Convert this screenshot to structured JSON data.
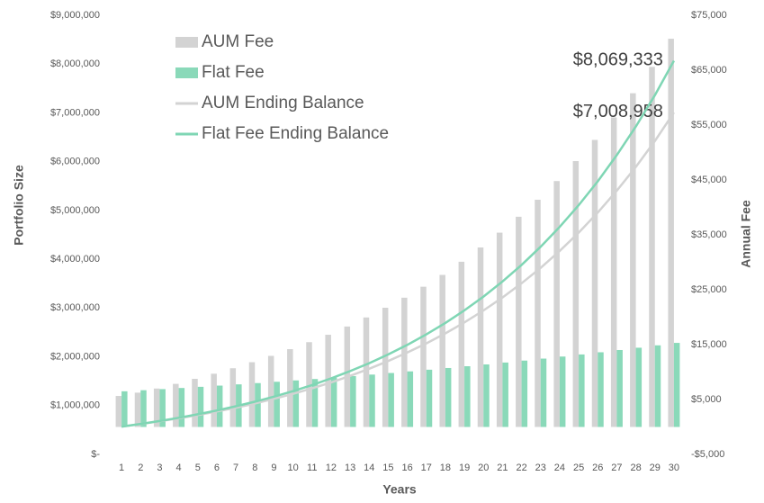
{
  "chart_data": {
    "type": "bar",
    "xlabel": "Years",
    "ylabel": "Portfolio Size",
    "y2label": "Annual Fee",
    "categories": [
      "1",
      "2",
      "3",
      "4",
      "5",
      "6",
      "7",
      "8",
      "9",
      "10",
      "11",
      "12",
      "13",
      "14",
      "15",
      "16",
      "17",
      "18",
      "19",
      "20",
      "21",
      "22",
      "23",
      "24",
      "25",
      "26",
      "27",
      "28",
      "29",
      "30"
    ],
    "series": [
      {
        "name": "AUM Fee",
        "type": "bar",
        "axis": "y2",
        "color": "#d3d3d3",
        "values": [
          5650,
          6250,
          7000,
          7850,
          8770,
          9700,
          10700,
          11800,
          12950,
          14180,
          15450,
          16800,
          18300,
          19950,
          21720,
          23550,
          25550,
          27700,
          30100,
          32700,
          35400,
          38300,
          41400,
          44800,
          48440,
          52300,
          56400,
          60800,
          65600,
          70730
        ]
      },
      {
        "name": "Flat Fee",
        "type": "bar",
        "axis": "y2",
        "color": "#8ad9b9",
        "values": [
          6500,
          6695,
          6896,
          7103,
          7316,
          7535,
          7761,
          7994,
          8234,
          8481,
          8735,
          8997,
          9267,
          9545,
          9832,
          10127,
          10430,
          10743,
          11066,
          11398,
          11740,
          12092,
          12455,
          12828,
          13213,
          13609,
          14018,
          14438,
          14871,
          15318
        ]
      },
      {
        "name": "AUM Ending Balance",
        "type": "line",
        "axis": "y",
        "color": "#d3d3d3",
        "values": [
          570000,
          622000,
          678000,
          739000,
          806000,
          879000,
          958000,
          1044000,
          1139000,
          1242000,
          1354000,
          1476000,
          1610000,
          1755000,
          1914000,
          2087000,
          2275000,
          2481000,
          2705000,
          2950000,
          3216000,
          3507000,
          3824000,
          4169000,
          4546000,
          4957000,
          5405000,
          5893000,
          6426000,
          7008958
        ],
        "end_label": "$7,008,958"
      },
      {
        "name": "Flat Fee Ending Balance",
        "type": "line",
        "axis": "y",
        "color": "#7fd6b4",
        "values": [
          570000,
          625000,
          684000,
          750000,
          822000,
          900000,
          986000,
          1081000,
          1184000,
          1297000,
          1422000,
          1558000,
          1707000,
          1870000,
          2049000,
          2245000,
          2460000,
          2695000,
          2953000,
          3235000,
          3545000,
          3884000,
          4256000,
          4663000,
          5109000,
          5598000,
          6134000,
          6721000,
          7364000,
          8069333
        ],
        "end_label": "$8,069,333"
      }
    ],
    "ylim": [
      0,
      9000000
    ],
    "yticks": [
      {
        "value": 0,
        "label": "$-"
      },
      {
        "value": 1000000,
        "label": "$1,000,000"
      },
      {
        "value": 2000000,
        "label": "$2,000,000"
      },
      {
        "value": 3000000,
        "label": "$3,000,000"
      },
      {
        "value": 4000000,
        "label": "$4,000,000"
      },
      {
        "value": 5000000,
        "label": "$5,000,000"
      },
      {
        "value": 6000000,
        "label": "$6,000,000"
      },
      {
        "value": 7000000,
        "label": "$7,000,000"
      },
      {
        "value": 8000000,
        "label": "$8,000,000"
      },
      {
        "value": 9000000,
        "label": "$9,000,000"
      }
    ],
    "y2lim": [
      -5000,
      75000
    ],
    "y2ticks": [
      {
        "value": -5000,
        "label": "-$5,000"
      },
      {
        "value": 5000,
        "label": "$5,000"
      },
      {
        "value": 15000,
        "label": "$15,000"
      },
      {
        "value": 25000,
        "label": "$25,000"
      },
      {
        "value": 35000,
        "label": "$35,000"
      },
      {
        "value": 45000,
        "label": "$45,000"
      },
      {
        "value": 55000,
        "label": "$55,000"
      },
      {
        "value": 65000,
        "label": "$65,000"
      },
      {
        "value": 75000,
        "label": "$75,000"
      }
    ],
    "grid": false,
    "legend": "upper left"
  }
}
